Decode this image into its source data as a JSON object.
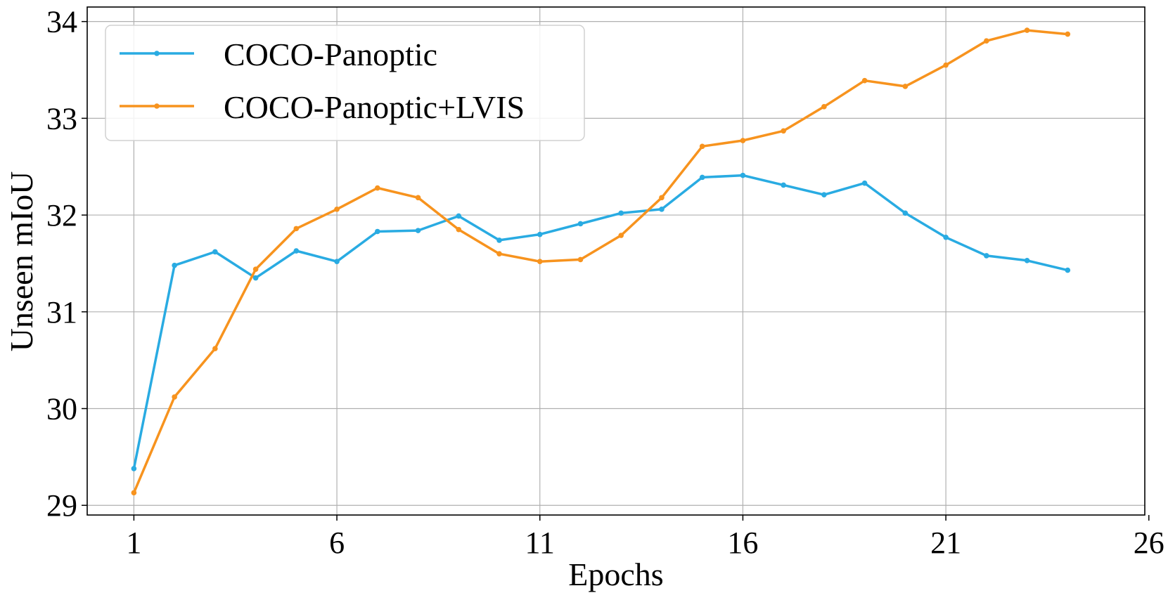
{
  "chart_data": {
    "type": "line",
    "title": "",
    "xlabel": "Epochs",
    "ylabel": "Unseen mIoU",
    "xlim": [
      -0.15,
      25.9
    ],
    "ylim": [
      28.9,
      34.15
    ],
    "xticks": [
      1,
      6,
      11,
      16,
      21,
      26
    ],
    "yticks": [
      29,
      30,
      31,
      32,
      33,
      34
    ],
    "grid": true,
    "legend_position": "top-left",
    "series": [
      {
        "name": "COCO-Panoptic",
        "color": "#29abe2",
        "x": [
          1,
          2,
          3,
          4,
          5,
          6,
          7,
          8,
          9,
          10,
          11,
          12,
          13,
          14,
          15,
          16,
          17,
          18,
          19,
          20,
          21,
          22,
          23,
          24
        ],
        "values": [
          29.38,
          31.48,
          31.62,
          31.35,
          31.63,
          31.52,
          31.83,
          31.84,
          31.99,
          31.74,
          31.8,
          31.91,
          32.02,
          32.06,
          32.39,
          32.41,
          32.31,
          32.21,
          32.33,
          32.02,
          31.77,
          31.58,
          31.53,
          31.43
        ]
      },
      {
        "name": "COCO-Panoptic+LVIS",
        "color": "#f7931e",
        "x": [
          1,
          2,
          3,
          4,
          5,
          6,
          7,
          8,
          9,
          10,
          11,
          12,
          13,
          14,
          15,
          16,
          17,
          18,
          19,
          20,
          21,
          22,
          23,
          24
        ],
        "values": [
          29.13,
          30.12,
          30.62,
          31.44,
          31.86,
          32.06,
          32.28,
          32.18,
          31.85,
          31.6,
          31.52,
          31.54,
          31.79,
          32.18,
          32.71,
          32.77,
          32.87,
          33.12,
          33.39,
          33.33,
          33.55,
          33.8,
          33.91,
          33.87
        ]
      }
    ]
  }
}
